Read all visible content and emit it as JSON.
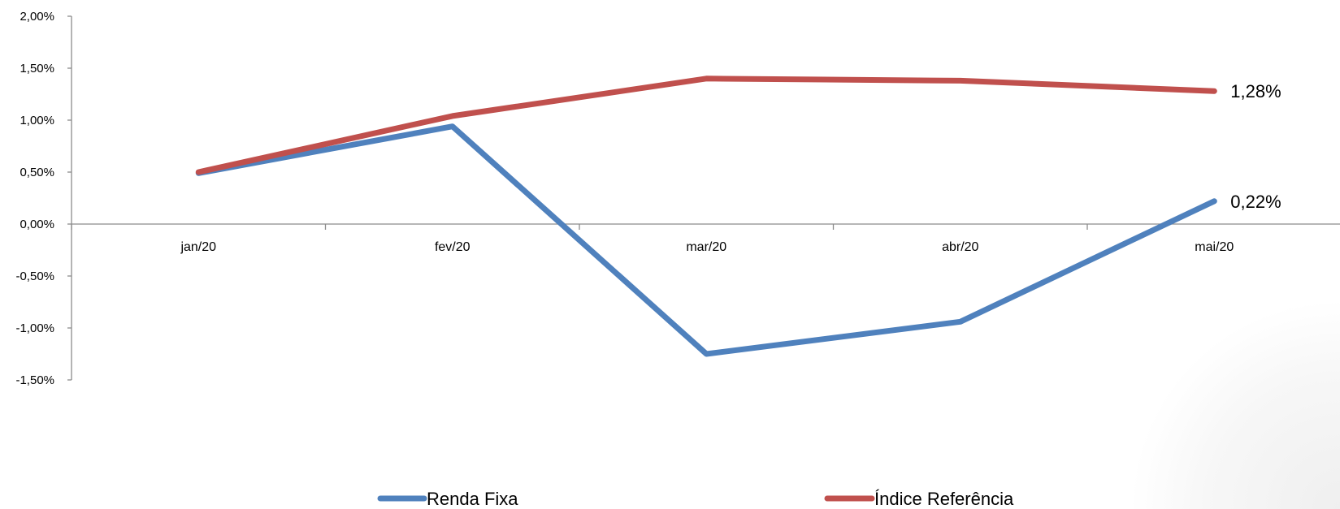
{
  "chart_data": {
    "type": "line",
    "categories": [
      "jan/20",
      "fev/20",
      "mar/20",
      "abr/20",
      "mai/20"
    ],
    "series": [
      {
        "name": "Renda Fixa",
        "values": [
          0.49,
          0.94,
          -1.25,
          -0.94,
          0.22
        ],
        "color": "#4f81bd",
        "end_label": "0,22%"
      },
      {
        "name": "Índice Referência",
        "values": [
          0.5,
          1.04,
          1.4,
          1.38,
          1.28
        ],
        "color": "#c0504d",
        "end_label": "1,28%"
      }
    ],
    "ylim": [
      -1.5,
      2.0
    ],
    "yticks": [
      {
        "value": 2.0,
        "label": "2,00%"
      },
      {
        "value": 1.5,
        "label": "1,50%"
      },
      {
        "value": 1.0,
        "label": "1,00%"
      },
      {
        "value": 0.5,
        "label": "0,50%"
      },
      {
        "value": 0.0,
        "label": "0,00%"
      },
      {
        "value": -0.5,
        "label": "-0,50%"
      },
      {
        "value": -1.0,
        "label": "-1,00%"
      },
      {
        "value": -1.5,
        "label": "-1,50%"
      }
    ],
    "grid": false,
    "legend": "bottom",
    "title": "",
    "xlabel": "",
    "ylabel": ""
  }
}
